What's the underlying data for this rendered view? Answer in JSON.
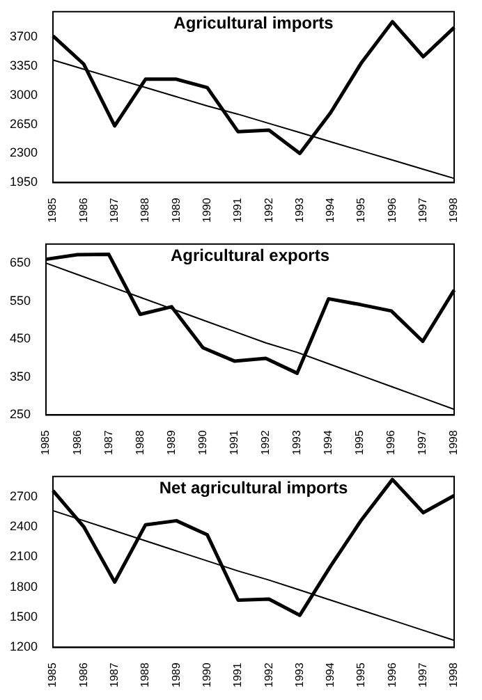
{
  "chart_data": [
    {
      "type": "line",
      "title": "Agricultural imports",
      "categories": [
        "1985",
        "1986",
        "1987",
        "1988",
        "1989",
        "1990",
        "1991",
        "1992",
        "1993",
        "1994",
        "1995",
        "1996",
        "1997",
        "1998"
      ],
      "series": [
        {
          "color": "#000000",
          "values": [
            3710,
            3370,
            2630,
            3190,
            3190,
            3090,
            2560,
            2580,
            2300,
            2790,
            3390,
            3880,
            3460,
            3810
          ]
        },
        {
          "color": "#000000",
          "values": [
            3420,
            3310,
            3200,
            3090,
            2980,
            2870,
            2770,
            2660,
            2550,
            2440,
            2330,
            2220,
            2110,
            2000
          ]
        }
      ],
      "ylim": [
        1950,
        4000
      ],
      "yticks": [
        1950,
        2300,
        2650,
        3000,
        3350,
        3700
      ],
      "grid": false,
      "legend": false,
      "marker": "none"
    },
    {
      "type": "line",
      "title": "Agricultural exports",
      "categories": [
        "1985",
        "1986",
        "1987",
        "1988",
        "1989",
        "1990",
        "1991",
        "1992",
        "1993",
        "1994",
        "1995",
        "1996",
        "1997",
        "1998"
      ],
      "series": [
        {
          "color": "#000000",
          "values": [
            660,
            672,
            673,
            515,
            535,
            427,
            392,
            399,
            360,
            556,
            541,
            524,
            444,
            579
          ]
        },
        {
          "color": "#000000",
          "values": [
            650,
            620,
            590,
            560,
            530,
            500,
            470,
            440,
            415,
            385,
            355,
            325,
            295,
            265
          ]
        }
      ],
      "ylim": [
        250,
        700
      ],
      "yticks": [
        250,
        350,
        450,
        550,
        650
      ],
      "grid": false,
      "legend": false,
      "marker": "none"
    },
    {
      "type": "line",
      "title": "Net agricultural imports",
      "categories": [
        "1985",
        "1986",
        "1987",
        "1988",
        "1989",
        "1990",
        "1991",
        "1992",
        "1993",
        "1994",
        "1995",
        "1996",
        "1997",
        "1998"
      ],
      "series": [
        {
          "color": "#000000",
          "values": [
            2760,
            2400,
            1850,
            2420,
            2460,
            2320,
            1670,
            1680,
            1520,
            2010,
            2470,
            2870,
            2540,
            2710
          ]
        },
        {
          "color": "#000000",
          "values": [
            2560,
            2460,
            2360,
            2260,
            2160,
            2060,
            1960,
            1870,
            1770,
            1670,
            1570,
            1470,
            1370,
            1270
          ]
        }
      ],
      "ylim": [
        1200,
        2900
      ],
      "yticks": [
        1200,
        1500,
        1800,
        2100,
        2400,
        2700
      ],
      "grid": false,
      "legend": false,
      "marker": "none"
    }
  ]
}
